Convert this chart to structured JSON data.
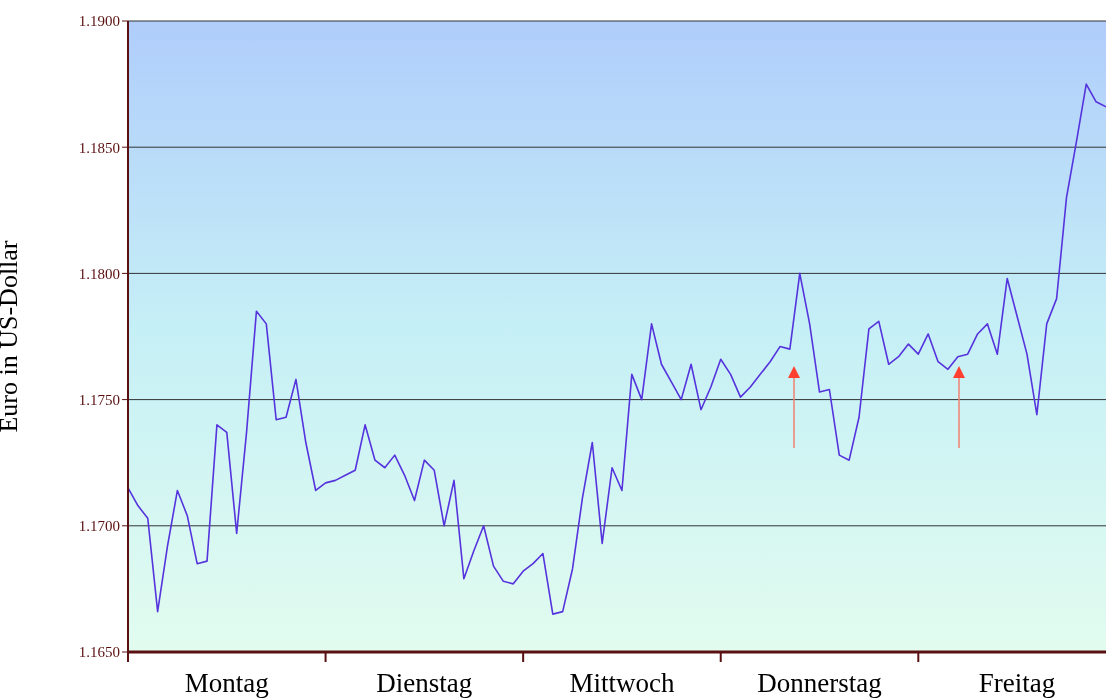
{
  "chart_data": {
    "type": "line",
    "ylabel": "Euro in US-Dollar",
    "categories": [
      null,
      null,
      null,
      null,
      null,
      null,
      null,
      null,
      null,
      null,
      "Montag",
      null,
      null,
      null,
      null,
      null,
      null,
      null,
      null,
      null,
      null,
      null,
      null,
      null,
      null,
      null,
      null,
      null,
      null,
      null,
      "Dienstag",
      null,
      null,
      null,
      null,
      null,
      null,
      null,
      null,
      null,
      null,
      null,
      null,
      null,
      null,
      null,
      null,
      null,
      null,
      null,
      "Mittwoch",
      null,
      null,
      null,
      null,
      null,
      null,
      null,
      null,
      null,
      null,
      null,
      null,
      null,
      null,
      null,
      null,
      null,
      null,
      null,
      "Donnerstag",
      null,
      null,
      null,
      null,
      null,
      null,
      null,
      null,
      null,
      null,
      null,
      null,
      null,
      null,
      null,
      null,
      null,
      null,
      null,
      "Freitag",
      null,
      null,
      null,
      null,
      null,
      null,
      null,
      null,
      null
    ],
    "series": [
      {
        "color": "#5533dd",
        "values": [
          1.1715,
          1.1708,
          1.1703,
          1.1666,
          1.1692,
          1.1714,
          1.1704,
          1.1685,
          1.1686,
          1.174,
          1.1737,
          1.1697,
          1.1737,
          1.1785,
          1.178,
          1.1742,
          1.1743,
          1.1758,
          1.1733,
          1.1714,
          1.1717,
          1.1718,
          1.172,
          1.1722,
          1.174,
          1.1726,
          1.1723,
          1.1728,
          1.172,
          1.171,
          1.1726,
          1.1722,
          1.17,
          1.1718,
          1.1679,
          1.169,
          1.17,
          1.1684,
          1.1678,
          1.1677,
          1.1682,
          1.1685,
          1.1689,
          1.1665,
          1.1666,
          1.1683,
          1.1711,
          1.1733,
          1.1693,
          1.1723,
          1.1714,
          1.176,
          1.175,
          1.178,
          1.1764,
          1.1757,
          1.175,
          1.1764,
          1.1746,
          1.1755,
          1.1766,
          1.176,
          1.1751,
          1.1755,
          1.176,
          1.1765,
          1.1771,
          1.177,
          1.18,
          1.178,
          1.1753,
          1.1754,
          1.1728,
          1.1726,
          1.1743,
          1.1778,
          1.1781,
          1.1764,
          1.1767,
          1.1772,
          1.1768,
          1.1776,
          1.1765,
          1.1762,
          1.1767,
          1.1768,
          1.1776,
          1.178,
          1.1768,
          1.1798,
          1.1783,
          1.1768,
          1.1744,
          1.178,
          1.179,
          1.183,
          1.1852,
          1.1875,
          1.1868,
          1.1866
        ]
      }
    ],
    "ylim": [
      1.165,
      1.19
    ],
    "yticks": [
      {
        "value": 1.165,
        "label": "1.1650"
      },
      {
        "value": 1.17,
        "label": "1.1700"
      },
      {
        "value": 1.175,
        "label": "1.1750"
      },
      {
        "value": 1.18,
        "label": "1.1800"
      },
      {
        "value": 1.185,
        "label": "1.1850"
      },
      {
        "value": 1.19,
        "label": "1.1900"
      }
    ],
    "grid": "y",
    "legend": false,
    "marker": "none",
    "line_style": "solid"
  }
}
